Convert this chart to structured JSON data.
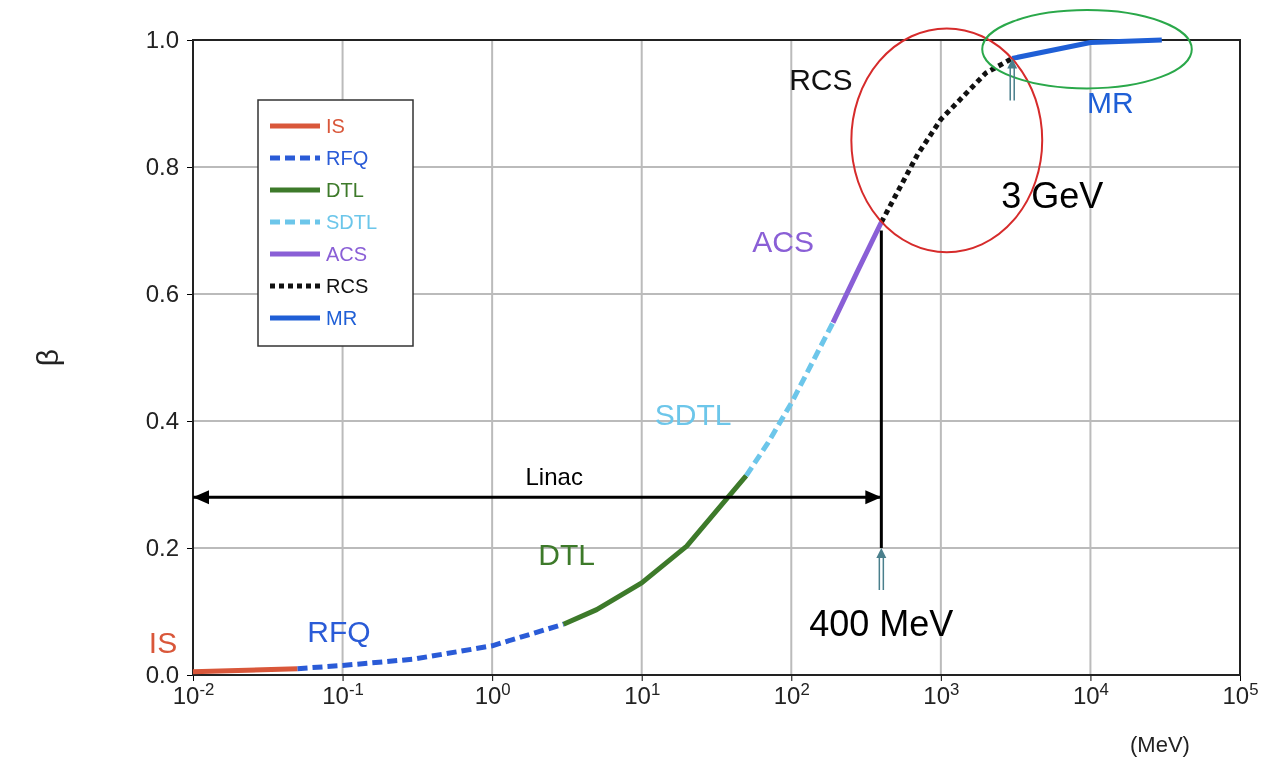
{
  "chart_data": {
    "type": "line",
    "xlabel": "(MeV)",
    "ylabel": "β",
    "log": "x",
    "grid": true,
    "legend": "top left",
    "xlim": [
      0.01,
      100000
    ],
    "xticks": [
      {
        "value": 0.01,
        "label": "10$^{-2}$"
      },
      {
        "value": 0.1,
        "label": "10$^{-1}$"
      },
      {
        "value": 1,
        "label": "10$^{0}$"
      },
      {
        "value": 10,
        "label": "10$^{1}$"
      },
      {
        "value": 100,
        "label": "10$^{2}$"
      },
      {
        "value": 1000,
        "label": "10$^{3}$"
      },
      {
        "value": 10000,
        "label": "10$^{4}$"
      },
      {
        "value": 100000,
        "label": "10$^{5}$"
      }
    ],
    "ylim": [
      0,
      1
    ],
    "yticks": [
      {
        "value": 0,
        "label": "0.0"
      },
      {
        "value": 0.2,
        "label": "0.2"
      },
      {
        "value": 0.4,
        "label": "0.4"
      },
      {
        "value": 0.6,
        "label": "0.6"
      },
      {
        "value": 0.8,
        "label": "0.8"
      },
      {
        "value": 1,
        "label": "1.0"
      }
    ],
    "series": [
      {
        "name": "IS",
        "color": "#d9573a",
        "line_style": "solid",
        "x": [
          0.01,
          0.02,
          0.05
        ],
        "values": [
          0.005,
          0.007,
          0.01
        ]
      },
      {
        "name": "RFQ",
        "color": "#2a5bd7",
        "line_style": "dashed",
        "x": [
          0.05,
          0.1,
          0.3,
          1,
          3
        ],
        "values": [
          0.01,
          0.015,
          0.025,
          0.046,
          0.08
        ]
      },
      {
        "name": "DTL",
        "color": "#3d7a2a",
        "line_style": "solid",
        "x": [
          3,
          5,
          10,
          20,
          50
        ],
        "values": [
          0.08,
          0.103,
          0.145,
          0.203,
          0.314
        ]
      },
      {
        "name": "SDTL",
        "color": "#6cc6ea",
        "line_style": "dashed",
        "x": [
          50,
          70,
          100,
          190
        ],
        "values": [
          0.314,
          0.366,
          0.428,
          0.555
        ]
      },
      {
        "name": "ACS",
        "color": "#8a5fd6",
        "line_style": "solid",
        "x": [
          190,
          280,
          400
        ],
        "values": [
          0.555,
          0.638,
          0.713
        ]
      },
      {
        "name": "RCS",
        "color": "#111111",
        "line_style": "dotted",
        "x": [
          400,
          700,
          1000,
          2000,
          3000
        ],
        "values": [
          0.713,
          0.82,
          0.875,
          0.948,
          0.971
        ]
      },
      {
        "name": "MR",
        "color": "#1f5fd6",
        "line_style": "solid",
        "x": [
          3000,
          10000,
          30000
        ],
        "values": [
          0.971,
          0.996,
          1.0
        ]
      },
      {
        "color": "#000000",
        "line_style": "solid",
        "x": [
          400,
          400
        ],
        "values": [
          0.2,
          0.7
        ]
      },
      {
        "color": "#000000",
        "line_style": "solid",
        "x": [
          0.01,
          400
        ],
        "values": [
          0.28,
          0.28
        ]
      }
    ],
    "annotations": [
      {
        "text": "Linac",
        "x": 2.6,
        "y": 0.28
      },
      {
        "text": "400 MeV",
        "x": 400,
        "y": 0.2
      },
      "3 GeV"
    ]
  }
}
